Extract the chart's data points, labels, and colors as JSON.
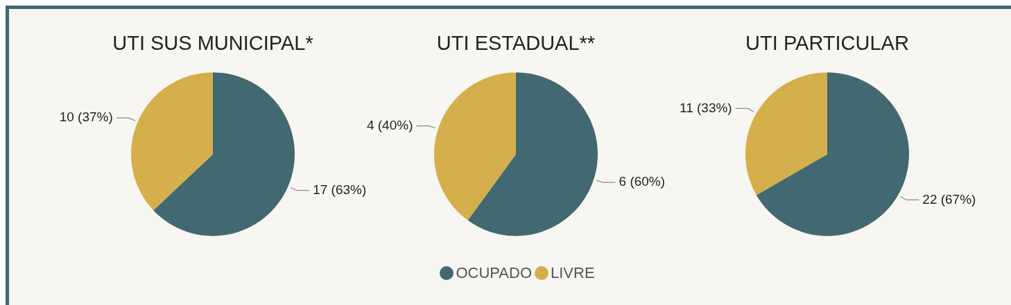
{
  "chart_data": [
    {
      "type": "pie",
      "title": "UTI SUS MUNICIPAL*",
      "categories": [
        null,
        null
      ],
      "values": [
        17,
        10
      ],
      "colors": [
        "#426872",
        "#d4af4c"
      ],
      "value_labels": [
        "17 (63%)",
        "10 (37%)"
      ]
    },
    {
      "type": "pie",
      "title": "UTI ESTADUAL**",
      "categories": [
        "OCUPADO",
        "LIVRE"
      ],
      "values": [
        6,
        4
      ],
      "colors": [
        "#426872",
        "#d4af4c"
      ],
      "value_labels": [
        "6 (60%)",
        "4 (40%)"
      ],
      "legend": "bottom"
    },
    {
      "type": "pie",
      "title": "UTI PARTICULAR",
      "categories": [
        null,
        null
      ],
      "values": [
        22,
        11
      ],
      "colors": [
        "#426872",
        "#d4af4c"
      ],
      "value_labels": [
        "22 (67%)",
        "11 (33%)"
      ]
    }
  ]
}
